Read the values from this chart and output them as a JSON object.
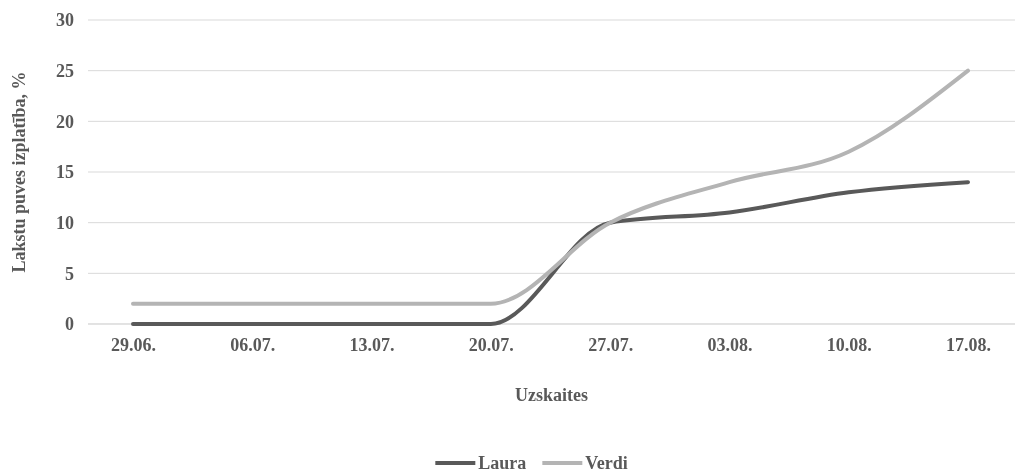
{
  "chart_data": {
    "type": "line",
    "xlabel": "Uzskaites",
    "ylabel": "Lakstu puves izplatība, %",
    "categories": [
      "29.06.",
      "06.07.",
      "13.07.",
      "20.07.",
      "27.07.",
      "03.08.",
      "10.08.",
      "17.08."
    ],
    "series": [
      {
        "name": "Laura",
        "color": "#595959",
        "values": [
          0,
          0,
          0,
          0,
          10,
          11,
          13,
          14
        ]
      },
      {
        "name": "Verdi",
        "color": "#b4b4b4",
        "values": [
          2,
          2,
          2,
          2,
          10,
          14,
          17,
          25
        ]
      }
    ],
    "ylim": [
      0,
      30
    ],
    "yticks": [
      0,
      5,
      10,
      15,
      20,
      25,
      30
    ],
    "grid": "y",
    "legend": "bottom",
    "marker": "none",
    "line_style": "solid"
  }
}
